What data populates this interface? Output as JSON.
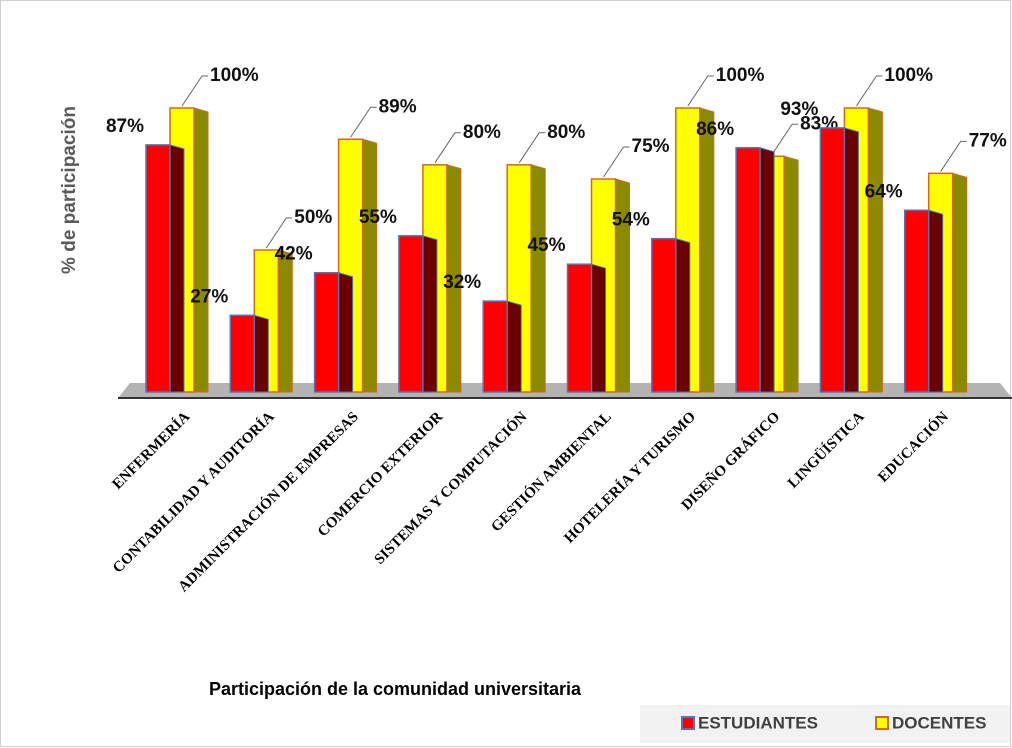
{
  "chart_data": {
    "type": "bar",
    "ylabel": "% de participación",
    "xlabel": "Participación de la comunidad universitaria",
    "categories": [
      "ENFERMERÍA",
      "CONTABILIDAD Y AUDITORÍA",
      "ADMINISTRACIÓN DE EMPRESAS",
      "COMERCIO EXTERIOR",
      "SISTEMAS Y COMPUTACIÓN",
      "GESTIÓN AMBIENTAL",
      "HOTELERÍA Y TURISMO",
      "DISEÑO GRÁFICO",
      "LINGÜÍSTICA",
      "EDUCACIÓN"
    ],
    "series": [
      {
        "name": "ESTUDIANTES",
        "color": "#ff0000",
        "values": [
          87,
          27,
          42,
          55,
          32,
          45,
          54,
          86,
          93,
          64
        ],
        "value_labels": [
          "87%",
          "27%",
          "42%",
          "55%",
          "32%",
          "45%",
          "54%",
          "86%",
          "93%",
          "64%"
        ]
      },
      {
        "name": "DOCENTES",
        "color": "#ffff00",
        "values": [
          100,
          50,
          89,
          80,
          80,
          75,
          100,
          83,
          100,
          77
        ],
        "value_labels": [
          "100%",
          "50%",
          "89%",
          "80%",
          "80%",
          "75%",
          "100%",
          "83%",
          "100%",
          "77%"
        ]
      }
    ],
    "ylim": [
      0,
      100
    ],
    "legend": "bottom-right"
  }
}
